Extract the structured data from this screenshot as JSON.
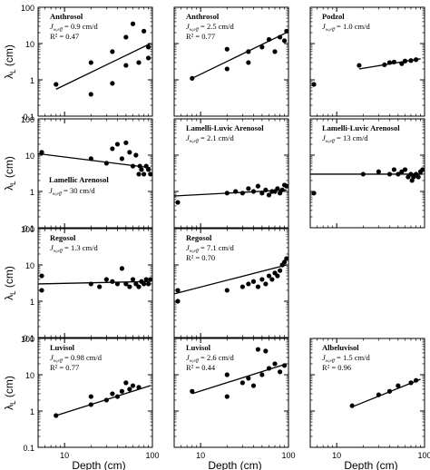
{
  "figure": {
    "y_axis_label": "λ",
    "y_axis_label_sub": "L",
    "y_axis_label_unit": " (cm)",
    "x_axis_label": "Depth (cm)",
    "y_tick_labels": [
      "100",
      "10",
      "1",
      "0.1"
    ],
    "x_tick_labels": [
      "10",
      "100"
    ]
  },
  "chart_data": [
    {
      "type": "scatter",
      "panel": "row1-col1",
      "xscale": "log",
      "yscale": "log",
      "xlim": [
        5,
        100
      ],
      "ylim": [
        0.1,
        100
      ],
      "title": "Anthrosol",
      "line2": "J",
      "line2_sub": "w,eff",
      "line2_value": " = 0.9 cm/d",
      "line3": "R² = 0.47",
      "points": [
        [
          8,
          0.75
        ],
        [
          20,
          0.4
        ],
        [
          20,
          3
        ],
        [
          35,
          0.8
        ],
        [
          35,
          6
        ],
        [
          50,
          2.5
        ],
        [
          50,
          15
        ],
        [
          60,
          35
        ],
        [
          70,
          3
        ],
        [
          80,
          22
        ],
        [
          90,
          4
        ],
        [
          90,
          8
        ]
      ],
      "fit": [
        [
          8,
          0.55
        ],
        [
          95,
          10
        ]
      ]
    },
    {
      "type": "scatter",
      "panel": "row1-col2",
      "xscale": "log",
      "yscale": "log",
      "xlim": [
        5,
        100
      ],
      "ylim": [
        0.1,
        100
      ],
      "title": "Anthrosol",
      "line2": "J",
      "line2_sub": "w,eff",
      "line2_value": " = 2.5 cm/d",
      "line3": "R² = 0.77",
      "points": [
        [
          8,
          1.1
        ],
        [
          20,
          2
        ],
        [
          20,
          7
        ],
        [
          35,
          3
        ],
        [
          35,
          6
        ],
        [
          50,
          8
        ],
        [
          60,
          13
        ],
        [
          70,
          6
        ],
        [
          80,
          15
        ],
        [
          90,
          12
        ],
        [
          95,
          22
        ]
      ],
      "fit": [
        [
          8,
          1.1
        ],
        [
          95,
          20
        ]
      ]
    },
    {
      "type": "scatter",
      "panel": "row1-col3",
      "xscale": "log",
      "yscale": "log",
      "xlim": [
        5,
        100
      ],
      "ylim": [
        0.1,
        100
      ],
      "title": "Podzol",
      "line2": "J",
      "line2_sub": "w,eff",
      "line2_value": " = 1.0 cm/d",
      "line3": "",
      "points": [
        [
          5.5,
          0.75
        ],
        [
          18,
          2.5
        ],
        [
          35,
          2.6
        ],
        [
          40,
          3
        ],
        [
          45,
          3.1
        ],
        [
          55,
          2.8
        ],
        [
          60,
          3.3
        ],
        [
          70,
          3.4
        ],
        [
          80,
          3.6
        ]
      ],
      "fit": [
        [
          18,
          2.0
        ],
        [
          90,
          3.8
        ]
      ]
    },
    {
      "type": "scatter",
      "panel": "row2-col1",
      "xscale": "log",
      "yscale": "log",
      "xlim": [
        5,
        100
      ],
      "ylim": [
        0.1,
        100
      ],
      "title": "",
      "line2": "",
      "line2_sub": "",
      "line2_value": "",
      "line3": "Lamellic Arenosol",
      "line4": "J",
      "line4_sub": "w,eff",
      "line4_value": " = 30 cm/d",
      "points": [
        [
          5.5,
          12
        ],
        [
          20,
          8
        ],
        [
          30,
          6
        ],
        [
          35,
          15
        ],
        [
          40,
          20
        ],
        [
          45,
          8
        ],
        [
          50,
          22
        ],
        [
          55,
          12
        ],
        [
          60,
          5
        ],
        [
          65,
          10
        ],
        [
          70,
          3
        ],
        [
          72,
          5
        ],
        [
          75,
          4
        ],
        [
          80,
          3
        ],
        [
          85,
          5
        ],
        [
          90,
          4
        ],
        [
          95,
          3
        ]
      ],
      "fit": [
        [
          5,
          11
        ],
        [
          95,
          4.5
        ]
      ]
    },
    {
      "type": "scatter",
      "panel": "row2-col2",
      "xscale": "log",
      "yscale": "log",
      "xlim": [
        5,
        100
      ],
      "ylim": [
        0.1,
        100
      ],
      "title": "Lamelli-Luvic Arenosol",
      "line2": "J",
      "line2_sub": "w,eff",
      "line2_value": " = 2.1 cm/d",
      "line3": "",
      "points": [
        [
          5.5,
          0.5
        ],
        [
          20,
          0.9
        ],
        [
          25,
          1
        ],
        [
          30,
          0.9
        ],
        [
          35,
          1.2
        ],
        [
          40,
          1
        ],
        [
          45,
          1.4
        ],
        [
          50,
          0.9
        ],
        [
          55,
          1.1
        ],
        [
          60,
          0.8
        ],
        [
          65,
          1
        ],
        [
          70,
          1
        ],
        [
          75,
          1.2
        ],
        [
          80,
          0.9
        ],
        [
          85,
          1.1
        ],
        [
          90,
          1.5
        ],
        [
          95,
          1.4
        ]
      ],
      "fit": [
        [
          5,
          0.75
        ],
        [
          95,
          1.1
        ]
      ]
    },
    {
      "type": "scatter",
      "panel": "row2-col3",
      "xscale": "log",
      "yscale": "log",
      "xlim": [
        5,
        100
      ],
      "ylim": [
        0.1,
        100
      ],
      "title": "Lamelli-Luvic Arenosol",
      "line2": "J",
      "line2_sub": "w,eff",
      "line2_value": " = 13 cm/d",
      "line3": "",
      "points": [
        [
          5.5,
          0.9
        ],
        [
          20,
          3
        ],
        [
          30,
          3.5
        ],
        [
          40,
          3
        ],
        [
          45,
          4
        ],
        [
          50,
          3
        ],
        [
          55,
          3.5
        ],
        [
          60,
          4
        ],
        [
          65,
          2.5
        ],
        [
          70,
          3
        ],
        [
          72,
          2
        ],
        [
          75,
          2.5
        ],
        [
          80,
          3
        ],
        [
          85,
          2.5
        ],
        [
          90,
          3.5
        ],
        [
          95,
          4
        ]
      ],
      "fit": [
        [
          5,
          3
        ],
        [
          95,
          3
        ]
      ]
    },
    {
      "type": "scatter",
      "panel": "row3-col1",
      "xscale": "log",
      "yscale": "log",
      "xlim": [
        5,
        100
      ],
      "ylim": [
        0.1,
        100
      ],
      "title": "Regosol",
      "line2": "J",
      "line2_sub": "w,eff",
      "line2_value": " = 1.3 cm/d",
      "line3": "",
      "points": [
        [
          5.5,
          2
        ],
        [
          5.5,
          5
        ],
        [
          20,
          3
        ],
        [
          25,
          2.5
        ],
        [
          30,
          4
        ],
        [
          35,
          3.5
        ],
        [
          40,
          3
        ],
        [
          45,
          8
        ],
        [
          50,
          3
        ],
        [
          55,
          2.5
        ],
        [
          60,
          4
        ],
        [
          65,
          3
        ],
        [
          70,
          2.5
        ],
        [
          75,
          3.5
        ],
        [
          80,
          3
        ],
        [
          85,
          4
        ],
        [
          90,
          3
        ],
        [
          95,
          4
        ]
      ],
      "fit": [
        [
          5,
          3
        ],
        [
          95,
          3.5
        ]
      ]
    },
    {
      "type": "scatter",
      "panel": "row3-col2",
      "xscale": "log",
      "yscale": "log",
      "xlim": [
        5,
        100
      ],
      "ylim": [
        0.1,
        100
      ],
      "title": "Regosol",
      "line2": "J",
      "line2_sub": "w,eff",
      "line2_value": " = 7.1 cm/d",
      "line3": "R² = 0.70",
      "points": [
        [
          5.5,
          1
        ],
        [
          5.5,
          2
        ],
        [
          20,
          2
        ],
        [
          30,
          2.5
        ],
        [
          35,
          3
        ],
        [
          40,
          3.5
        ],
        [
          45,
          2.5
        ],
        [
          50,
          4
        ],
        [
          55,
          3
        ],
        [
          60,
          5
        ],
        [
          65,
          4
        ],
        [
          70,
          6
        ],
        [
          75,
          5
        ],
        [
          80,
          7
        ],
        [
          85,
          10
        ],
        [
          90,
          12
        ],
        [
          95,
          15
        ]
      ],
      "fit": [
        [
          5,
          1.6
        ],
        [
          95,
          10
        ]
      ]
    },
    {
      "type": "scatter",
      "panel": "row4-col1",
      "xscale": "log",
      "yscale": "log",
      "xlim": [
        5,
        100
      ],
      "ylim": [
        0.1,
        100
      ],
      "title": "Luvisol",
      "line2": "J",
      "line2_sub": "w,eff",
      "line2_value": " = 0.98 cm/d",
      "line3": "R² = 0.77",
      "points": [
        [
          8,
          0.75
        ],
        [
          20,
          1.5
        ],
        [
          20,
          2.5
        ],
        [
          30,
          2
        ],
        [
          35,
          3
        ],
        [
          40,
          2.5
        ],
        [
          45,
          3.5
        ],
        [
          50,
          6
        ],
        [
          55,
          4
        ],
        [
          60,
          5
        ],
        [
          70,
          4.5
        ]
      ],
      "fit": [
        [
          8,
          0.75
        ],
        [
          95,
          5
        ]
      ]
    },
    {
      "type": "scatter",
      "panel": "row4-col2",
      "xscale": "log",
      "yscale": "log",
      "xlim": [
        5,
        100
      ],
      "ylim": [
        0.1,
        100
      ],
      "title": "Luvisol",
      "line2": "J",
      "line2_sub": "w,eff",
      "line2_value": " = 2.6 cm/d",
      "line3": "R² = 0.44",
      "points": [
        [
          8,
          3.5
        ],
        [
          20,
          2.5
        ],
        [
          20,
          10
        ],
        [
          30,
          6
        ],
        [
          35,
          8
        ],
        [
          40,
          5
        ],
        [
          45,
          50
        ],
        [
          50,
          10
        ],
        [
          55,
          45
        ],
        [
          60,
          15
        ],
        [
          70,
          20
        ],
        [
          80,
          12
        ],
        [
          90,
          18
        ]
      ],
      "fit": [
        [
          8,
          3
        ],
        [
          95,
          20
        ]
      ]
    },
    {
      "type": "scatter",
      "panel": "row4-col3",
      "xscale": "log",
      "yscale": "log",
      "xlim": [
        5,
        100
      ],
      "ylim": [
        0.1,
        100
      ],
      "title": "Albeluvisol",
      "line2": "J",
      "line2_sub": "w,eff",
      "line2_value": " = 1.5 cm/d",
      "line3": "R² = 0.96",
      "points": [
        [
          15,
          1.4
        ],
        [
          30,
          2.8
        ],
        [
          40,
          3.5
        ],
        [
          50,
          5
        ],
        [
          70,
          6
        ],
        [
          80,
          7
        ]
      ],
      "fit": [
        [
          15,
          1.3
        ],
        [
          90,
          7.5
        ]
      ]
    }
  ]
}
